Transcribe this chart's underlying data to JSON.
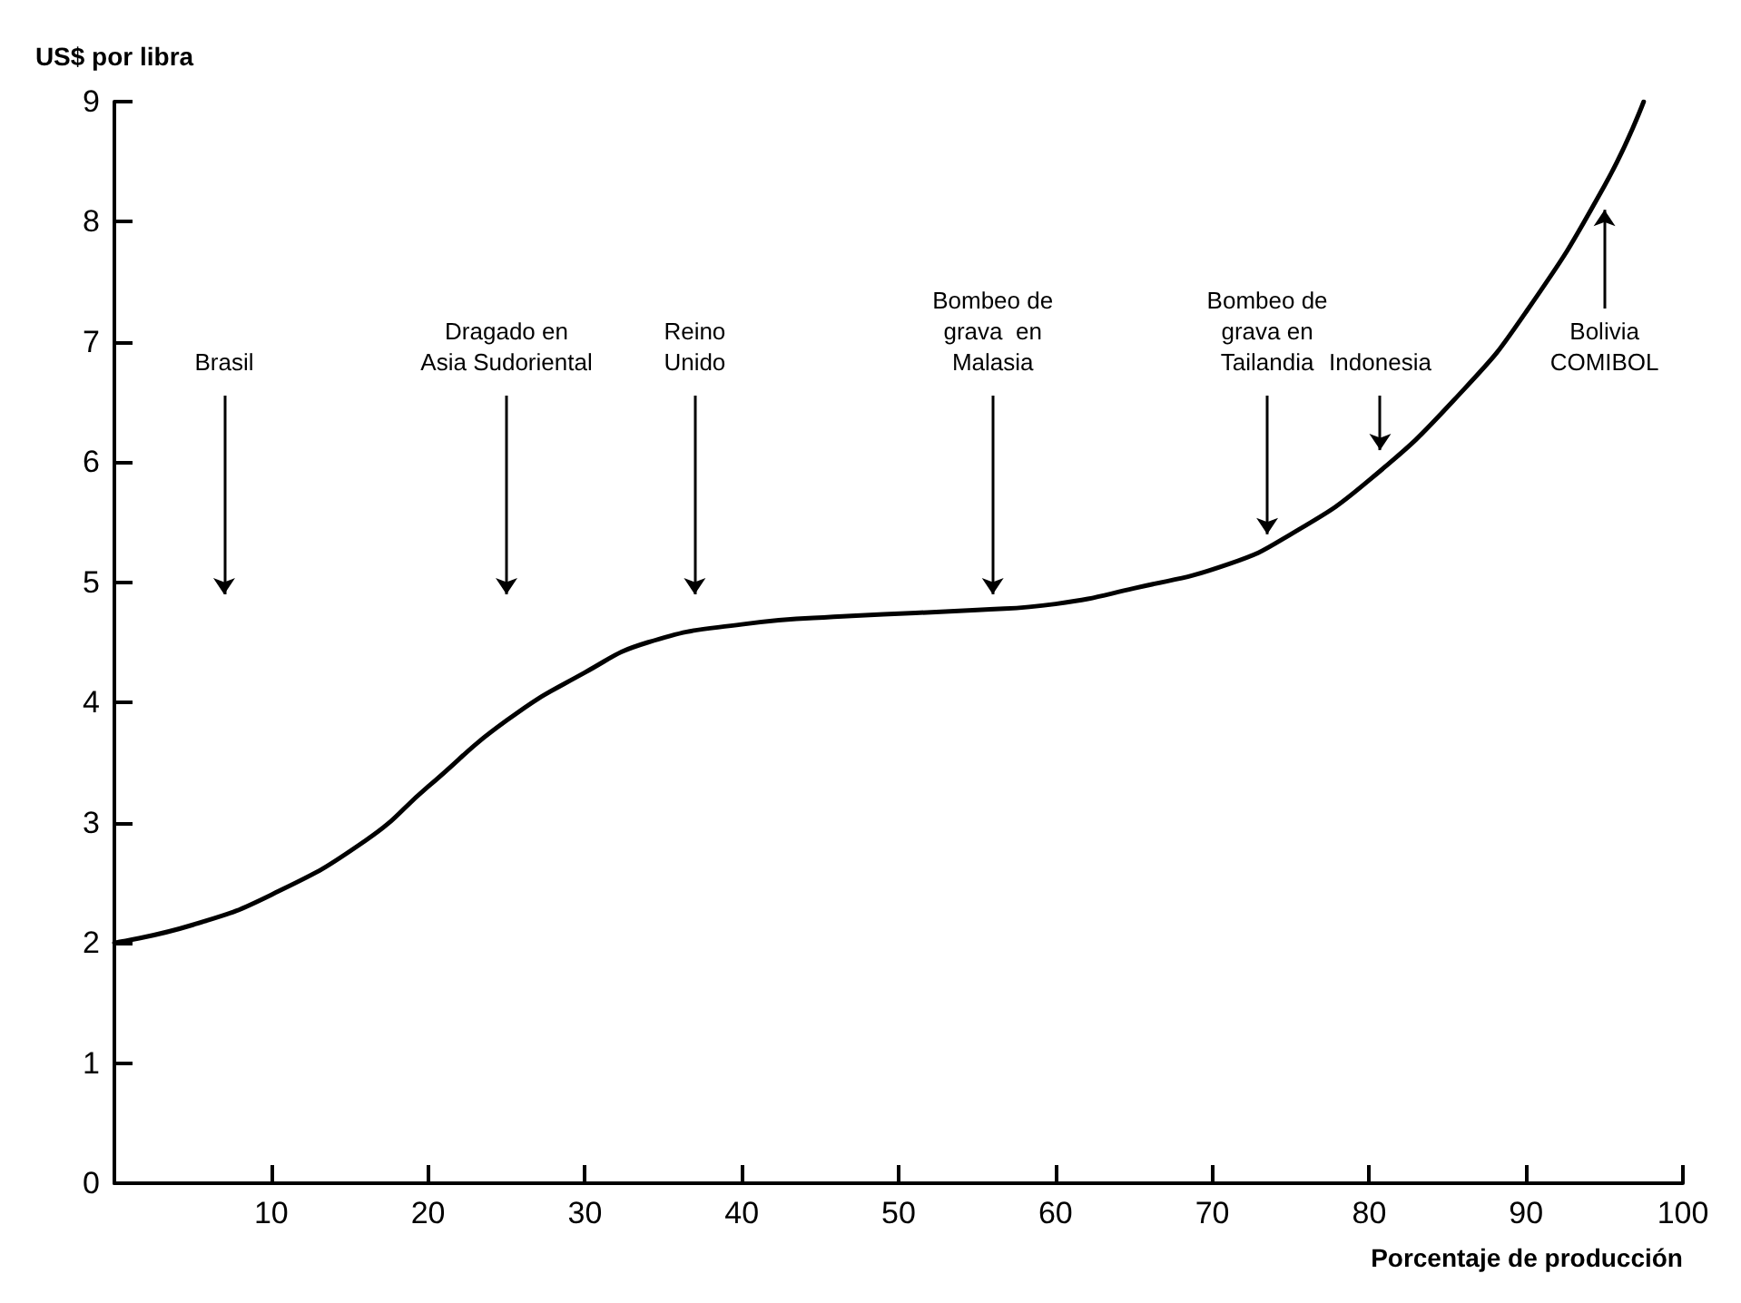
{
  "chart_data": {
    "type": "line",
    "xlabel": "Porcentaje de producción",
    "ylabel": "US$ por libra",
    "x": [
      0,
      5,
      10,
      16,
      20,
      25,
      30,
      34,
      40,
      47,
      55,
      60,
      65,
      71,
      75,
      80,
      86,
      90,
      95,
      97.5
    ],
    "series": [
      {
        "color": "#000000",
        "values": [
          2,
          2.15,
          2.4,
          2.85,
          3.3,
          3.85,
          4.25,
          4.5,
          4.65,
          4.72,
          4.77,
          4.82,
          4.95,
          5.15,
          5.4,
          5.85,
          6.6,
          7.25,
          8.3,
          9
        ]
      }
    ],
    "xlim": [
      0,
      100
    ],
    "xticks": [
      {
        "value": 0,
        "label": null
      },
      10,
      20,
      30,
      40,
      50,
      60,
      70,
      80,
      90,
      100
    ],
    "ylim": [
      0,
      9
    ],
    "yticks": [
      0,
      1,
      2,
      3,
      4,
      5,
      6,
      7,
      8,
      9
    ],
    "grid": false,
    "marker": "none",
    "line_style": "solid",
    "annotations": [
      "Brasil",
      "Dragado en\nAsia Sudoriental",
      "Reino\nUnido",
      "Bombeo de\ngrava  en\nMalasia",
      "Bombeo de\ngrava en\nTailandia",
      "Indonesia",
      "Bolivia\nCOMIBOL"
    ]
  }
}
